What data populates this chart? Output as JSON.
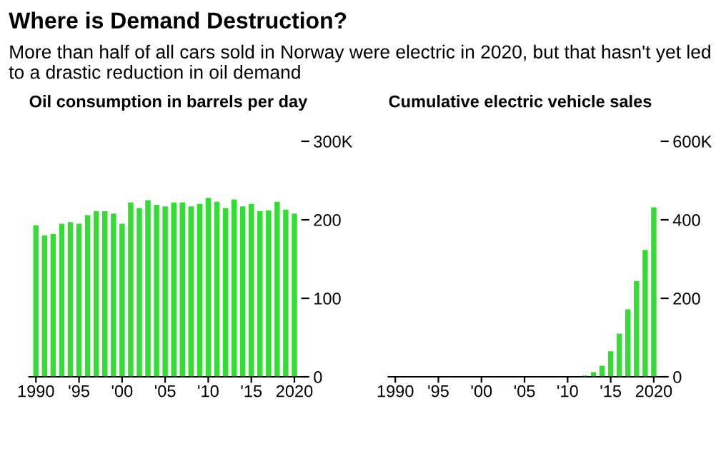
{
  "chart_data": [
    {
      "type": "bar",
      "annotations": [
        "Where is Demand Destruction?",
        "More than half of all cars sold in Norway were electric in 2020, but that hasn't yet led to a drastic reduction in oil demand"
      ],
      "title": "Oil consumption in barrels per day",
      "categories": [
        "1990",
        null,
        null,
        null,
        null,
        "'95",
        null,
        null,
        null,
        null,
        "'00",
        null,
        null,
        null,
        null,
        "'05",
        null,
        null,
        null,
        null,
        "'10",
        null,
        null,
        null,
        null,
        "'15",
        null,
        null,
        null,
        null,
        "2020"
      ],
      "values": [
        193,
        180,
        182,
        195,
        197,
        195,
        206,
        211,
        211,
        208,
        195,
        222,
        215,
        225,
        219,
        217,
        222,
        222,
        217,
        220,
        228,
        223,
        215,
        226,
        217,
        220,
        211,
        212,
        223,
        213,
        208
      ],
      "color": "#33dd33",
      "ylim": [
        0,
        300
      ],
      "yticks": [
        0,
        100,
        200,
        {
          "value": 300,
          "label": "300K"
        }
      ],
      "grid": false,
      "legend": false
    },
    {
      "type": "bar",
      "title": "Cumulative electric vehicle sales",
      "categories": [
        "1990",
        null,
        null,
        null,
        null,
        "'95",
        null,
        null,
        null,
        null,
        "'00",
        null,
        null,
        null,
        null,
        "'05",
        null,
        null,
        null,
        null,
        "'10",
        null,
        null,
        null,
        null,
        "'15",
        null,
        null,
        null,
        null,
        "2020"
      ],
      "values": [
        0,
        0,
        0,
        0,
        0,
        0,
        0,
        0,
        0,
        0,
        0,
        0,
        0,
        0,
        0,
        0,
        0,
        0,
        0,
        0,
        0,
        null,
        3,
        12,
        28,
        65,
        110,
        172,
        244,
        323,
        432
      ],
      "color": "#33dd33",
      "ylim": [
        0,
        600
      ],
      "yticks": [
        0,
        200,
        400,
        {
          "value": 600,
          "label": "600K"
        }
      ],
      "grid": false,
      "legend": false
    }
  ]
}
